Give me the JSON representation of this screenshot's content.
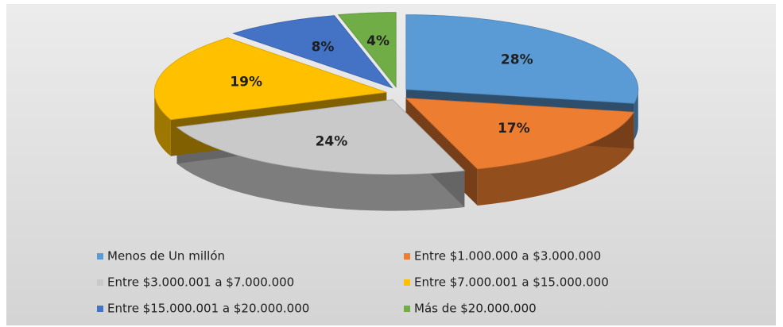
{
  "chart_data": {
    "type": "pie",
    "categories": [
      "Menos de Un millón",
      "Entre $1.000.000 a $3.000.000",
      "Entre $3.000.001 a $7.000.000",
      "Entre $7.000.001 a $15.000.000",
      "Entre $15.000.001 a $20.000.000",
      "Más de $20.000.000"
    ],
    "values": [
      28,
      17,
      24,
      19,
      8,
      4
    ],
    "value_labels": [
      "28%",
      "17%",
      "24%",
      "19%",
      "8%",
      "4%"
    ],
    "colors": [
      "#5b9bd5",
      "#ed7d31",
      "#c9c9c9",
      "#ffc000",
      "#4472c4",
      "#70ad47"
    ]
  }
}
